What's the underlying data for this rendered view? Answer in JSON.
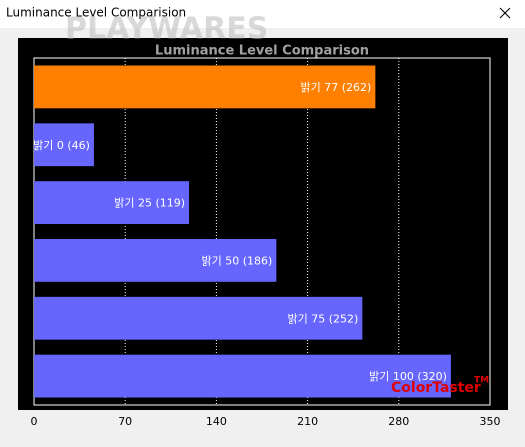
{
  "window_title": "Luminance Level Comparision",
  "watermark": "PLAYWARES",
  "brand": {
    "name": "ColorTaster",
    "mark": "TM"
  },
  "chart_data": {
    "type": "bar",
    "orientation": "horizontal",
    "title": "Luminance Level Comparison",
    "values": [
      262,
      46,
      119,
      186,
      252,
      320
    ],
    "value_labels": [
      "밝기 77 (262)",
      "밝기 0 (46)",
      "밝기 25 (119)",
      "밝기 50 (186)",
      "밝기 75 (252)",
      "밝기 100 (320)"
    ],
    "colors": [
      "#ff8000",
      "#6666ff",
      "#6666ff",
      "#6666ff",
      "#6666ff",
      "#6666ff"
    ],
    "xlim": [
      0,
      350
    ],
    "xticks": [
      0,
      70,
      140,
      210,
      280,
      350
    ],
    "grid": true
  }
}
